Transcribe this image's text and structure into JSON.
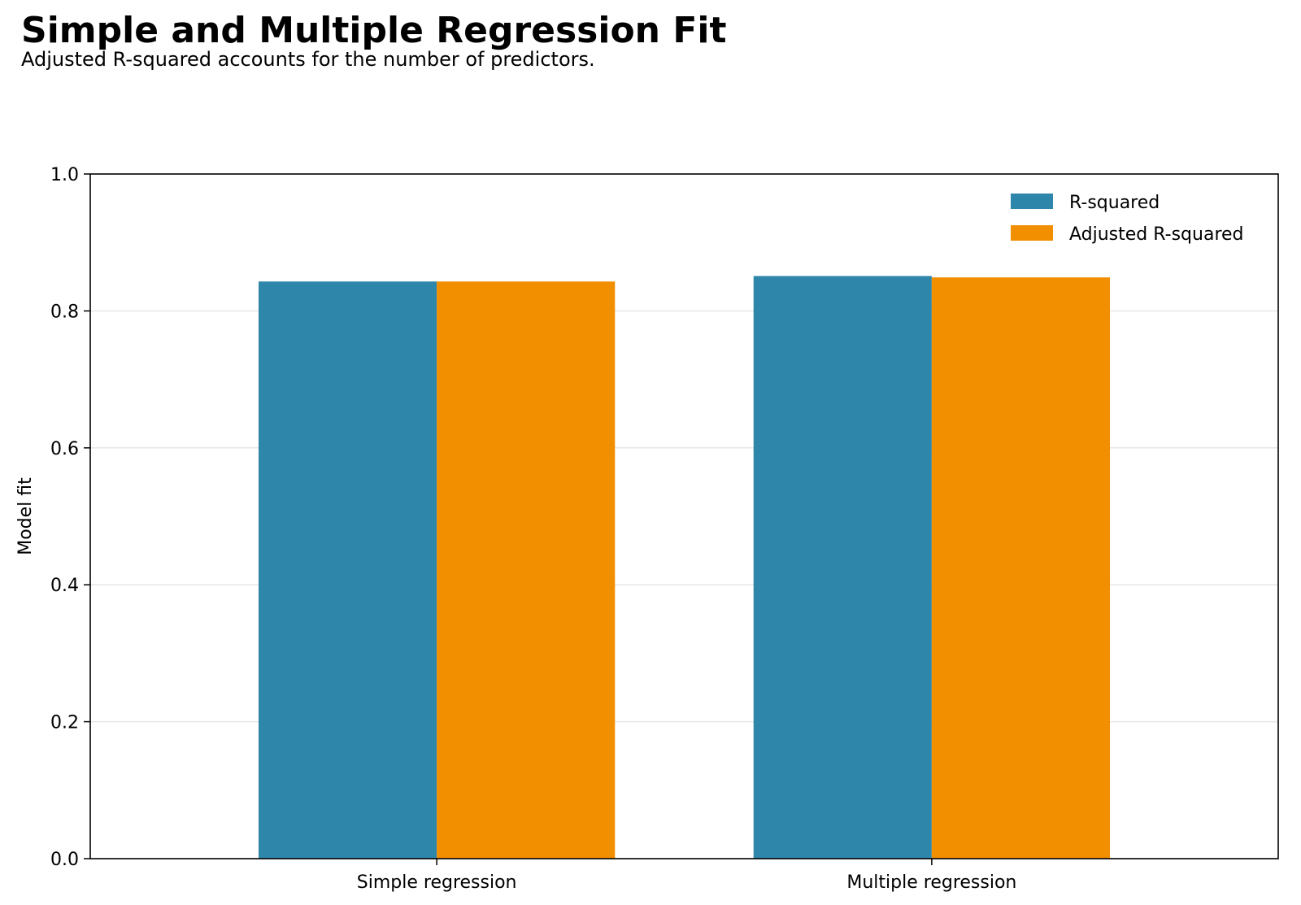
{
  "chart_data": {
    "type": "bar",
    "title": "Simple and Multiple Regression Fit",
    "subtitle": "Adjusted R-squared accounts for the number of predictors.",
    "xlabel": "",
    "ylabel": "Model fit",
    "categories": [
      "Simple regression",
      "Multiple regression"
    ],
    "series": [
      {
        "name": "R-squared",
        "color": "#2e86ab",
        "values": [
          0.843,
          0.851
        ]
      },
      {
        "name": "Adjusted R-squared",
        "color": "#f18f01",
        "values": [
          0.843,
          0.849
        ]
      }
    ],
    "ylim": [
      0,
      1.0
    ],
    "yticks": [
      "0.0",
      "0.2",
      "0.4",
      "0.6",
      "0.8",
      "1.0"
    ],
    "grid": "y",
    "legend": "top-right"
  }
}
